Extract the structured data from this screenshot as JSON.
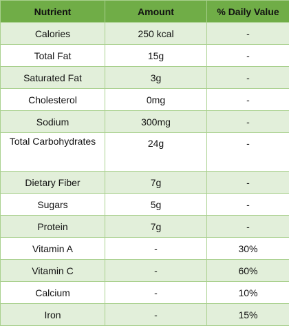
{
  "table": {
    "headers": [
      "Nutrient",
      "Amount",
      "% Daily Value"
    ],
    "rows": [
      {
        "nutrient": "Calories",
        "amount": "250 kcal",
        "dv": "-"
      },
      {
        "nutrient": "Total Fat",
        "amount": "15g",
        "dv": "-"
      },
      {
        "nutrient": "Saturated Fat",
        "amount": "3g",
        "dv": "-"
      },
      {
        "nutrient": "Cholesterol",
        "amount": "0mg",
        "dv": "-"
      },
      {
        "nutrient": "Sodium",
        "amount": "300mg",
        "dv": "-"
      },
      {
        "nutrient": "Total Carbohydrates",
        "amount": "24g",
        "dv": "-"
      },
      {
        "nutrient": "Dietary Fiber",
        "amount": "7g",
        "dv": "-"
      },
      {
        "nutrient": "Sugars",
        "amount": "5g",
        "dv": "-"
      },
      {
        "nutrient": "Protein",
        "amount": "7g",
        "dv": "-"
      },
      {
        "nutrient": "Vitamin A",
        "amount": "-",
        "dv": "30%"
      },
      {
        "nutrient": "Vitamin C",
        "amount": "-",
        "dv": "60%"
      },
      {
        "nutrient": "Calcium",
        "amount": "-",
        "dv": "10%"
      },
      {
        "nutrient": "Iron",
        "amount": "-",
        "dv": "15%"
      }
    ]
  },
  "colors": {
    "header_bg": "#70ad47",
    "band_bg": "#e2efda",
    "border": "#a9d08e"
  }
}
